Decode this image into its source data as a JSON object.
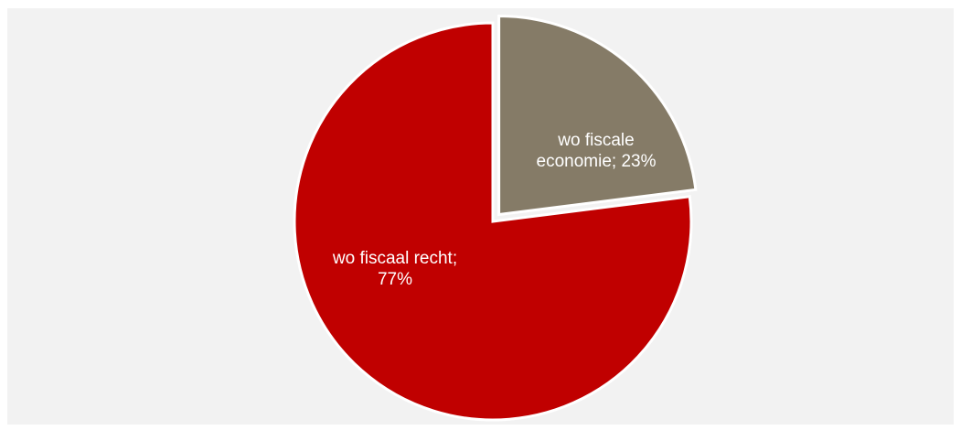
{
  "chart_data": {
    "type": "pie",
    "title": "",
    "legend": "none",
    "slices": [
      {
        "name": "wo fiscale economie",
        "value": 23,
        "label_lines": [
          "wo fiscale",
          "economie; 23%"
        ],
        "color": "#857b67",
        "exploded": true
      },
      {
        "name": "wo fiscaal recht",
        "value": 77,
        "label_lines": [
          "wo fiscaal recht;",
          "77%"
        ],
        "color": "#c00000",
        "exploded": false
      }
    ]
  }
}
